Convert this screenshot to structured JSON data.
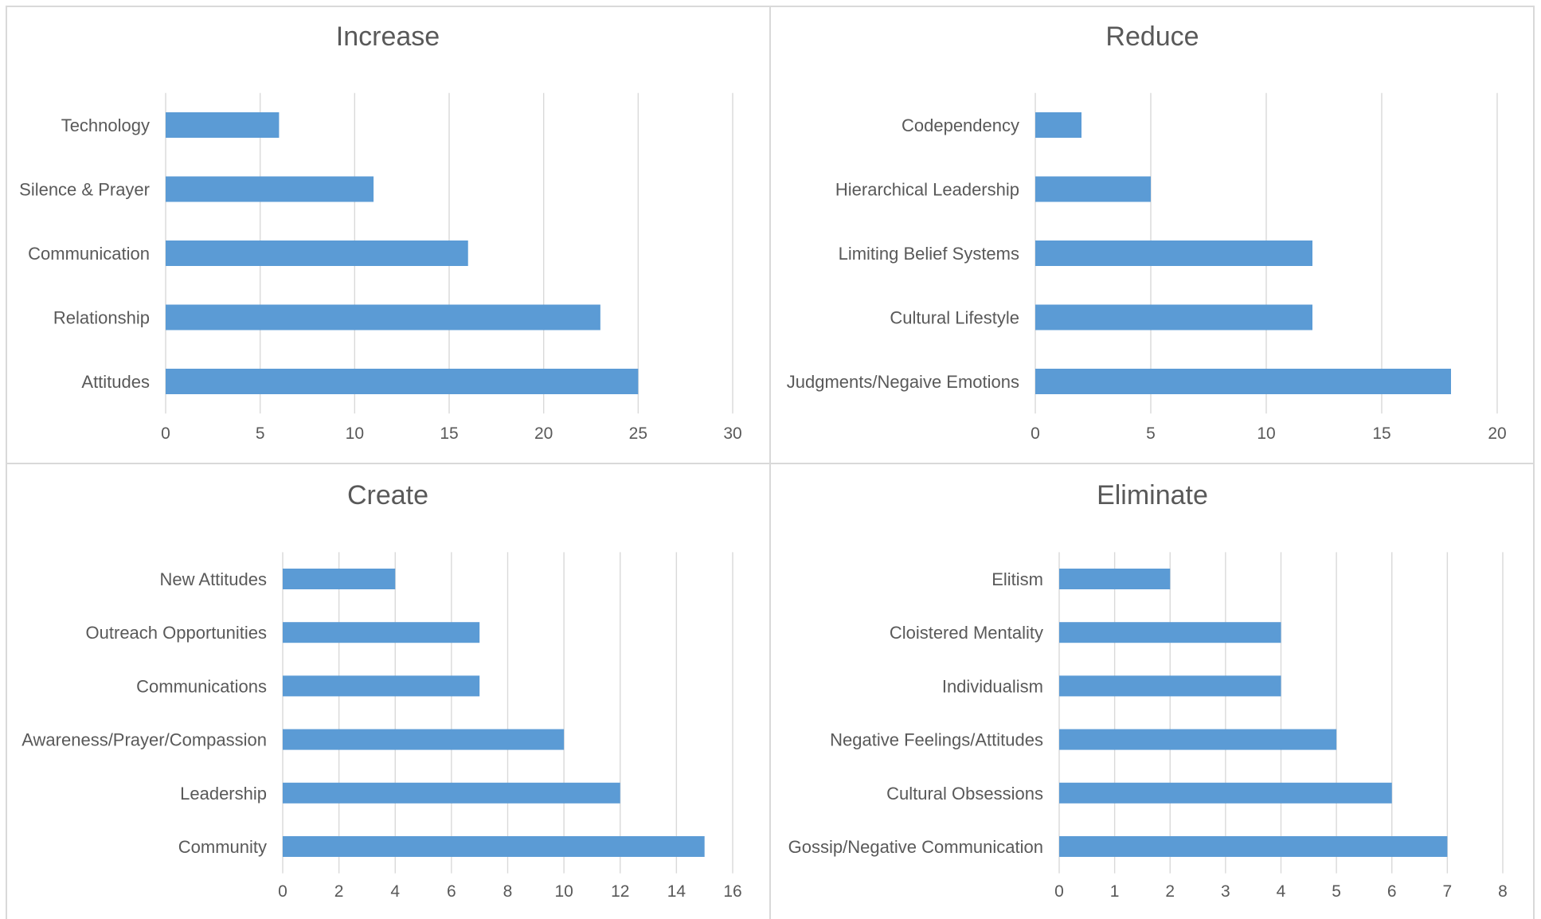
{
  "colors": {
    "bar": "#5B9BD5",
    "grid": "#D9D9D9",
    "text": "#595959",
    "border": "#D9D9D9"
  },
  "chart_data": [
    {
      "type": "bar",
      "orientation": "horizontal",
      "title": "Increase",
      "categories": [
        "Technology",
        "Silence & Prayer",
        "Communication",
        "Relationship",
        "Attitudes"
      ],
      "values": [
        6,
        11,
        16,
        23,
        25
      ],
      "xlim": [
        0,
        30
      ],
      "xticks": [
        "0",
        "5",
        "10",
        "15",
        "20",
        "25",
        "30"
      ],
      "grid": true,
      "legend": "none"
    },
    {
      "type": "bar",
      "orientation": "horizontal",
      "title": "Reduce",
      "categories": [
        "Codependency",
        "Hierarchical Leadership",
        "Limiting Belief Systems",
        "Cultural Lifestyle",
        "Judgments/Negaive Emotions"
      ],
      "values": [
        2,
        5,
        12,
        12,
        18
      ],
      "xlim": [
        0,
        20
      ],
      "xticks": [
        "0",
        "5",
        "10",
        "15",
        "20"
      ],
      "grid": true,
      "legend": "none"
    },
    {
      "type": "bar",
      "orientation": "horizontal",
      "title": "Create",
      "categories": [
        "New Attitudes",
        "Outreach Opportunities",
        "Communications",
        "Awareness/Prayer/Compassion",
        "Leadership",
        "Community"
      ],
      "values": [
        4,
        7,
        7,
        10,
        12,
        15
      ],
      "xlim": [
        0,
        16
      ],
      "xticks": [
        "0",
        "2",
        "4",
        "6",
        "8",
        "10",
        "12",
        "14",
        "16"
      ],
      "grid": true,
      "legend": "none"
    },
    {
      "type": "bar",
      "orientation": "horizontal",
      "title": "Eliminate",
      "categories": [
        "Elitism",
        "Cloistered Mentality",
        "Individualism",
        "Negative Feelings/Attitudes",
        "Cultural Obsessions",
        "Gossip/Negative Communication"
      ],
      "values": [
        2,
        4,
        4,
        5,
        6,
        7
      ],
      "xlim": [
        0,
        8
      ],
      "xticks": [
        "0",
        "1",
        "2",
        "3",
        "4",
        "5",
        "6",
        "7",
        "8"
      ],
      "grid": true,
      "legend": "none"
    }
  ]
}
